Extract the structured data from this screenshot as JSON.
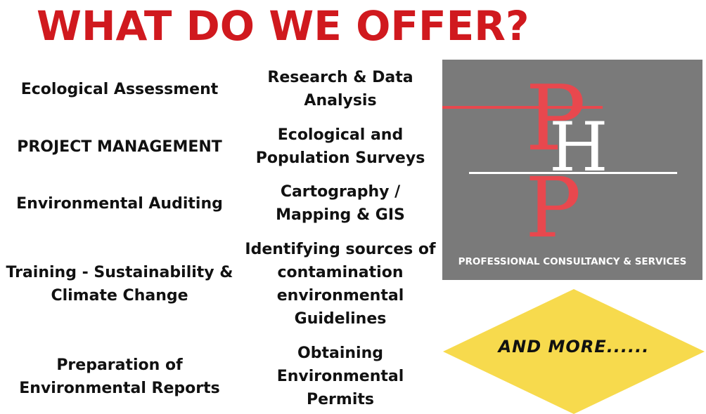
{
  "title": "WHAT DO WE OFFER?",
  "services_left": [
    {
      "line1": "Ecological Assessment",
      "line2": ""
    },
    {
      "line1": "PROJECT MANAGEMENT",
      "line2": ""
    },
    {
      "line1": "Environmental Auditing",
      "line2": ""
    },
    {
      "line1": "Training - Sustainability &",
      "line2": "Climate Change"
    },
    {
      "line1": "Preparation of",
      "line2": "Environmental Reports"
    }
  ],
  "services_middle": [
    {
      "lines": [
        "Research & Data",
        "Analysis"
      ]
    },
    {
      "lines": [
        "Ecological and",
        "Population Surveys"
      ]
    },
    {
      "lines": [
        "Cartography /",
        "Mapping & GIS"
      ]
    },
    {
      "lines": [
        "Identifying sources of",
        "contamination",
        "environmental",
        "Guidelines"
      ]
    },
    {
      "lines": [
        "Obtaining",
        "Environmental",
        "Permits"
      ]
    }
  ],
  "logo": {
    "letters": "PHP",
    "tagline": "PROFESSIONAL CONSULTANCY & SERVICES",
    "colors": {
      "background": "#7a7a7a",
      "accent": "#e8484e",
      "light": "#ffffff"
    }
  },
  "more_badge": {
    "text": "AND MORE......",
    "color": "#f7da4d"
  },
  "colors": {
    "title": "#d0191e",
    "text": "#111111"
  }
}
